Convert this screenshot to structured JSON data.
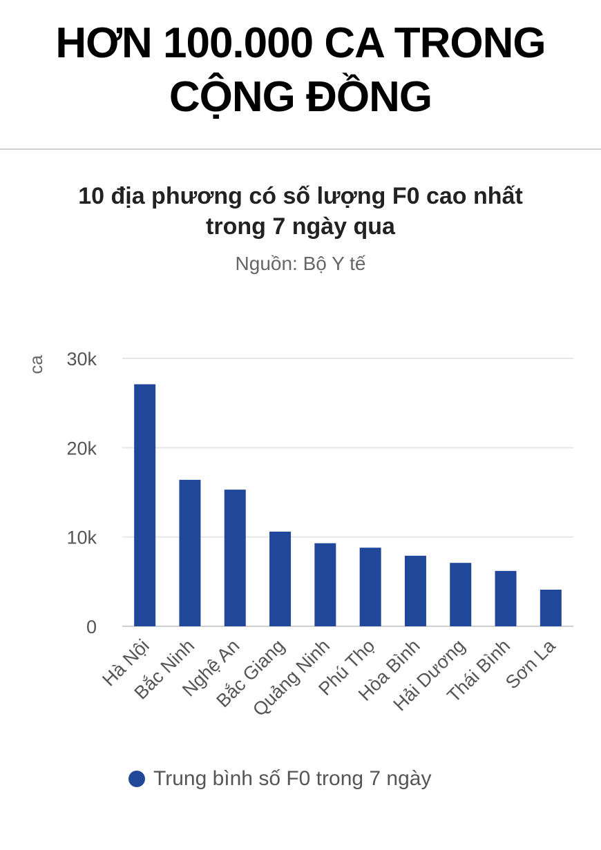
{
  "headline": "HƠN 100.000 CA TRONG CỘNG ĐỒNG",
  "chart_data": {
    "type": "bar",
    "title": "10 địa phương có số lượng F0 cao nhất trong 7 ngày qua",
    "subtitle": "Nguồn: Bộ Y tế",
    "ylabel": "ca",
    "xlabel": "",
    "ylim": [
      0,
      30000
    ],
    "yticks": [
      0,
      10000,
      20000,
      30000
    ],
    "ytick_labels": [
      "0",
      "10k",
      "20k",
      "30k"
    ],
    "categories": [
      "Hà Nội",
      "Bắc Ninh",
      "Nghệ An",
      "Bắc Giang",
      "Quảng Ninh",
      "Phú Thọ",
      "Hòa Bình",
      "Hải Dương",
      "Thái Bình",
      "Sơn La"
    ],
    "series": [
      {
        "name": "Trung bình số F0 trong 7 ngày",
        "values": [
          27100,
          16400,
          15300,
          10600,
          9300,
          8800,
          7900,
          7100,
          6200,
          4100
        ]
      }
    ],
    "grid": true,
    "legend_position": "bottom"
  },
  "colors": {
    "bar": "#21479b",
    "grid": "#e6e6e6",
    "axis_text": "#555555"
  }
}
